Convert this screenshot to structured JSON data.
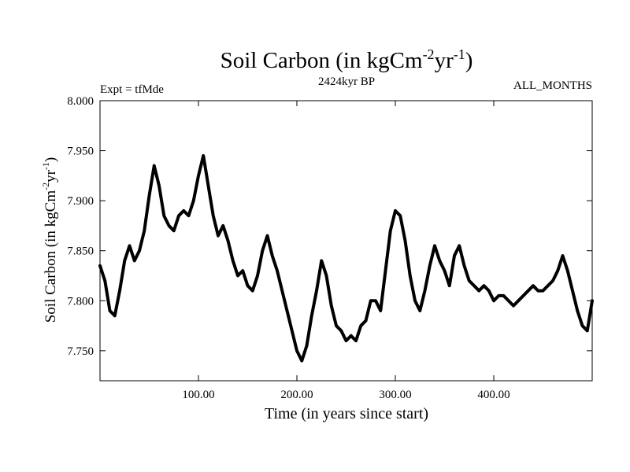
{
  "chart_data": {
    "type": "line",
    "title_main": "Soil Carbon (in kgCm",
    "title_sup1": "-2",
    "title_mid": "yr",
    "title_sup2": "-1",
    "title_end": ")",
    "subtitle": "2424kyr BP",
    "left_label": "Expt = tfMde",
    "right_label": "ALL_MONTHS",
    "xlabel": "Time (in years since start)",
    "ylabel_main": "Soil Carbon (in kgCm",
    "ylabel_sup1": "-2",
    "ylabel_mid": "yr",
    "ylabel_sup2": "-1",
    "ylabel_end": ")",
    "xlim": [
      0,
      500
    ],
    "ylim": [
      7.72,
      8.0
    ],
    "x_ticks": [
      100,
      200,
      300,
      400
    ],
    "x_tick_labels": [
      "100.00",
      "200.00",
      "300.00",
      "400.00"
    ],
    "y_ticks": [
      7.75,
      7.8,
      7.85,
      7.9,
      7.95,
      8.0
    ],
    "y_tick_labels": [
      "7.750",
      "7.800",
      "7.850",
      "7.900",
      "7.950",
      "8.000"
    ],
    "series": [
      {
        "name": "Soil Carbon",
        "color": "#000000",
        "x": [
          0,
          5,
          10,
          15,
          20,
          25,
          30,
          35,
          40,
          45,
          50,
          55,
          60,
          65,
          70,
          75,
          80,
          85,
          90,
          95,
          100,
          105,
          110,
          115,
          120,
          125,
          130,
          135,
          140,
          145,
          150,
          155,
          160,
          165,
          170,
          175,
          180,
          185,
          190,
          195,
          200,
          205,
          210,
          215,
          220,
          225,
          230,
          235,
          240,
          245,
          250,
          255,
          260,
          265,
          270,
          275,
          280,
          285,
          290,
          295,
          300,
          305,
          310,
          315,
          320,
          325,
          330,
          335,
          340,
          345,
          350,
          355,
          360,
          365,
          370,
          375,
          380,
          385,
          390,
          395,
          400,
          405,
          410,
          415,
          420,
          425,
          430,
          435,
          440,
          445,
          450,
          455,
          460,
          465,
          470,
          475,
          480,
          485,
          490,
          495,
          500
        ],
        "values": [
          7.835,
          7.82,
          7.79,
          7.785,
          7.81,
          7.84,
          7.855,
          7.84,
          7.85,
          7.87,
          7.905,
          7.935,
          7.915,
          7.885,
          7.875,
          7.87,
          7.885,
          7.89,
          7.885,
          7.9,
          7.925,
          7.945,
          7.915,
          7.885,
          7.865,
          7.875,
          7.86,
          7.84,
          7.825,
          7.83,
          7.815,
          7.81,
          7.825,
          7.85,
          7.865,
          7.845,
          7.83,
          7.81,
          7.79,
          7.77,
          7.75,
          7.74,
          7.755,
          7.785,
          7.81,
          7.84,
          7.825,
          7.795,
          7.775,
          7.77,
          7.76,
          7.765,
          7.76,
          7.775,
          7.78,
          7.8,
          7.8,
          7.79,
          7.83,
          7.87,
          7.89,
          7.885,
          7.86,
          7.825,
          7.8,
          7.79,
          7.81,
          7.835,
          7.855,
          7.84,
          7.83,
          7.815,
          7.845,
          7.855,
          7.835,
          7.82,
          7.815,
          7.81,
          7.815,
          7.81,
          7.8,
          7.805,
          7.805,
          7.8,
          7.795,
          7.8,
          7.805,
          7.81,
          7.815,
          7.81,
          7.81,
          7.815,
          7.82,
          7.83,
          7.845,
          7.83,
          7.81,
          7.79,
          7.775,
          7.77,
          7.8
        ]
      }
    ]
  }
}
